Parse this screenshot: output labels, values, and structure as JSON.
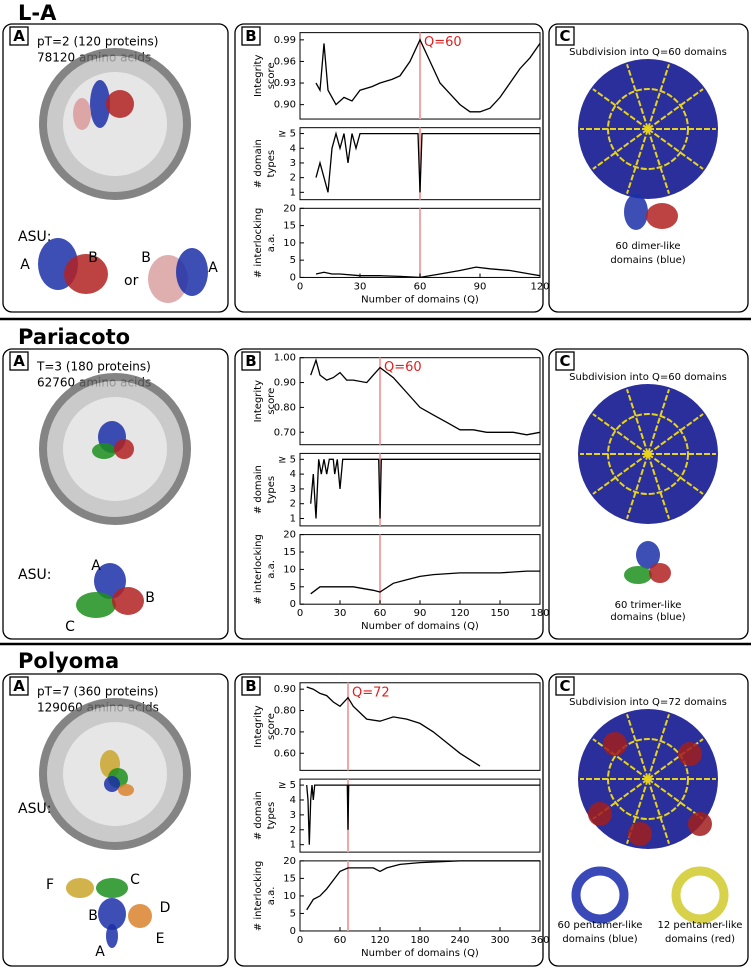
{
  "rows": [
    {
      "title": "L-A",
      "panel_a": {
        "label": "A",
        "lines": [
          "pT=2 (120 proteins)",
          "78120 amino acids"
        ],
        "asu_label": "ASU:",
        "chains": [
          "A",
          "B",
          "B",
          "A"
        ],
        "or": "or"
      },
      "panel_b": {
        "label": "B"
      },
      "panel_c": {
        "label": "C",
        "heading": "Subdivision into Q=60 domains",
        "captions": [
          [
            "60 dimer-like",
            "domains (blue)"
          ]
        ]
      }
    },
    {
      "title": "Pariacoto",
      "panel_a": {
        "label": "A",
        "lines": [
          "T=3 (180 proteins)",
          "62760 amino acids"
        ],
        "asu_label": "ASU:",
        "chains": [
          "A",
          "B",
          "C"
        ]
      },
      "panel_b": {
        "label": "B"
      },
      "panel_c": {
        "label": "C",
        "heading": "Subdivision into Q=60 domains",
        "captions": [
          [
            "60 trimer-like",
            "domains (blue)"
          ]
        ]
      }
    },
    {
      "title": "Polyoma",
      "panel_a": {
        "label": "A",
        "lines": [
          "pT=7 (360 proteins)",
          "129060 amino acids"
        ],
        "asu_label": "ASU:",
        "chains": [
          "F",
          "C",
          "D",
          "B",
          "E",
          "A"
        ]
      },
      "panel_b": {
        "label": "B"
      },
      "panel_c": {
        "label": "C",
        "heading": "Subdivision into Q=72 domains",
        "captions": [
          [
            "60 pentamer-like",
            "domains (blue)"
          ],
          [
            "12 pentamer-like",
            "domains (red)"
          ]
        ]
      }
    }
  ],
  "chart_data": [
    {
      "type": "line",
      "y_label": [
        "Integrity",
        "score"
      ],
      "annotation": "Q=60",
      "marker_x": 60,
      "color": "#000000",
      "x": [
        8,
        10,
        12,
        14,
        18,
        22,
        26,
        30,
        36,
        40,
        46,
        50,
        55,
        60,
        65,
        70,
        75,
        80,
        85,
        90,
        95,
        100,
        105,
        110,
        115,
        120
      ],
      "values": [
        0.93,
        0.92,
        0.985,
        0.92,
        0.9,
        0.91,
        0.905,
        0.92,
        0.925,
        0.93,
        0.935,
        0.94,
        0.96,
        0.99,
        0.96,
        0.93,
        0.915,
        0.9,
        0.89,
        0.89,
        0.895,
        0.91,
        0.93,
        0.95,
        0.965,
        0.985
      ],
      "xlim": [
        0,
        120
      ],
      "ylim": [
        0.88,
        1.0
      ],
      "yticks": [
        {
          "value": 0.9,
          "label": "0.90"
        },
        0.93,
        0.96,
        0.99
      ]
    },
    {
      "type": "line",
      "y_label": [
        "# domain",
        "types"
      ],
      "marker_x": 60,
      "color": "#000000",
      "x": [
        8,
        10,
        12,
        14,
        16,
        18,
        20,
        22,
        24,
        26,
        28,
        30,
        40,
        59,
        60,
        61,
        120
      ],
      "values": [
        2,
        3,
        2,
        1,
        4,
        5,
        4,
        5,
        3,
        5,
        4,
        5,
        5,
        5,
        1,
        5,
        5
      ],
      "xlim": [
        0,
        120
      ],
      "ylim": [
        0.5,
        5.4
      ],
      "yticks": [
        1,
        2,
        3,
        4,
        {
          "value": 5,
          "label": "≥ 5"
        }
      ]
    },
    {
      "type": "line",
      "y_label": [
        "# interlocking",
        "a.a."
      ],
      "marker_x": 60,
      "color": "#000000",
      "x": [
        8,
        12,
        16,
        20,
        30,
        40,
        50,
        60,
        70,
        80,
        88,
        95,
        105,
        115,
        120
      ],
      "values": [
        1,
        1.5,
        1,
        1,
        0.5,
        0.5,
        0.3,
        0,
        1,
        2,
        3,
        2.5,
        2,
        1,
        0.5
      ],
      "xlim": [
        0,
        120
      ],
      "ylim": [
        0,
        20
      ],
      "yticks": [
        0,
        5,
        10,
        15,
        20
      ],
      "xticks": [
        0,
        30,
        60,
        90,
        120
      ],
      "x_label": "Number of domains (Q)"
    },
    {
      "type": "line",
      "y_label": [
        "Integrity",
        "score"
      ],
      "annotation": "Q=60",
      "marker_x": 60,
      "color": "#000000",
      "x": [
        8,
        12,
        15,
        20,
        25,
        30,
        35,
        40,
        50,
        55,
        60,
        70,
        80,
        90,
        100,
        110,
        120,
        130,
        140,
        150,
        160,
        170,
        180
      ],
      "values": [
        0.93,
        0.99,
        0.93,
        0.91,
        0.92,
        0.94,
        0.91,
        0.91,
        0.9,
        0.93,
        0.96,
        0.92,
        0.86,
        0.8,
        0.77,
        0.74,
        0.71,
        0.71,
        0.7,
        0.7,
        0.7,
        0.69,
        0.7
      ],
      "xlim": [
        0,
        180
      ],
      "ylim": [
        0.65,
        1.0
      ],
      "yticks": [
        {
          "value": 0.7,
          "label": "0.70"
        },
        {
          "value": 0.8,
          "label": "0.80"
        },
        {
          "value": 0.9,
          "label": "0.90"
        },
        {
          "value": 1.0,
          "label": "1.00"
        }
      ]
    },
    {
      "type": "line",
      "y_label": [
        "# domain",
        "types"
      ],
      "marker_x": 60,
      "color": "#000000",
      "x": [
        8,
        10,
        12,
        14,
        16,
        18,
        20,
        22,
        25,
        26,
        28,
        30,
        32,
        59,
        60,
        61,
        180
      ],
      "values": [
        2,
        4,
        1,
        5,
        4,
        5,
        4,
        5,
        5,
        4,
        5,
        3,
        5,
        5,
        1,
        5,
        5
      ],
      "xlim": [
        0,
        180
      ],
      "ylim": [
        0.5,
        5.4
      ],
      "yticks": [
        1,
        2,
        3,
        4,
        {
          "value": 5,
          "label": "≥ 5"
        }
      ]
    },
    {
      "type": "line",
      "y_label": [
        "# interlocking",
        "a.a."
      ],
      "marker_x": 60,
      "color": "#000000",
      "x": [
        8,
        15,
        25,
        40,
        55,
        60,
        70,
        80,
        90,
        100,
        120,
        150,
        170,
        180
      ],
      "values": [
        3,
        5,
        5,
        5,
        4,
        3.5,
        6,
        7,
        8,
        8.5,
        9,
        9,
        9.5,
        9.5
      ],
      "xlim": [
        0,
        180
      ],
      "ylim": [
        0,
        20
      ],
      "yticks": [
        0,
        5,
        10,
        15,
        20
      ],
      "xticks": [
        0,
        30,
        60,
        90,
        120,
        150,
        180
      ],
      "x_label": "Number of domains (Q)"
    },
    {
      "type": "line",
      "y_label": [
        "Integrity",
        "score"
      ],
      "annotation": "Q=72",
      "marker_x": 72,
      "color": "#000000",
      "x": [
        10,
        20,
        30,
        40,
        50,
        60,
        72,
        80,
        100,
        120,
        140,
        160,
        180,
        200,
        220,
        240,
        260,
        270
      ],
      "values": [
        0.91,
        0.9,
        0.88,
        0.87,
        0.84,
        0.82,
        0.86,
        0.82,
        0.76,
        0.75,
        0.77,
        0.76,
        0.74,
        0.7,
        0.65,
        0.6,
        0.56,
        0.54
      ],
      "xlim": [
        0,
        360
      ],
      "ylim": [
        0.52,
        0.93
      ],
      "yticks": [
        {
          "value": 0.6,
          "label": "0.60"
        },
        {
          "value": 0.7,
          "label": "0.70"
        },
        {
          "value": 0.8,
          "label": "0.80"
        },
        {
          "value": 0.9,
          "label": "0.90"
        }
      ]
    },
    {
      "type": "line",
      "y_label": [
        "# domain",
        "types"
      ],
      "marker_x": 72,
      "color": "#000000",
      "x": [
        10,
        12,
        14,
        16,
        18,
        20,
        22,
        30,
        71,
        72,
        73,
        360
      ],
      "values": [
        5,
        4,
        1,
        4,
        5,
        4,
        5,
        5,
        5,
        2,
        5,
        5
      ],
      "xlim": [
        0,
        360
      ],
      "ylim": [
        0.5,
        5.4
      ],
      "yticks": [
        1,
        2,
        3,
        4,
        {
          "value": 5,
          "label": "≥ 5"
        }
      ]
    },
    {
      "type": "line",
      "y_label": [
        "# interlocking",
        "a.a."
      ],
      "marker_x": 72,
      "color": "#000000",
      "x": [
        10,
        20,
        30,
        40,
        60,
        72,
        90,
        110,
        120,
        130,
        150,
        180,
        240,
        300,
        360
      ],
      "values": [
        6,
        9,
        10,
        12,
        17,
        18,
        18,
        18,
        17,
        18,
        19,
        19.5,
        20,
        20,
        20
      ],
      "xlim": [
        0,
        360
      ],
      "ylim": [
        0,
        20
      ],
      "yticks": [
        0,
        5,
        10,
        15,
        20
      ],
      "xticks": [
        0,
        60,
        120,
        180,
        240,
        300,
        360
      ],
      "x_label": "Number of domains (Q)"
    }
  ]
}
